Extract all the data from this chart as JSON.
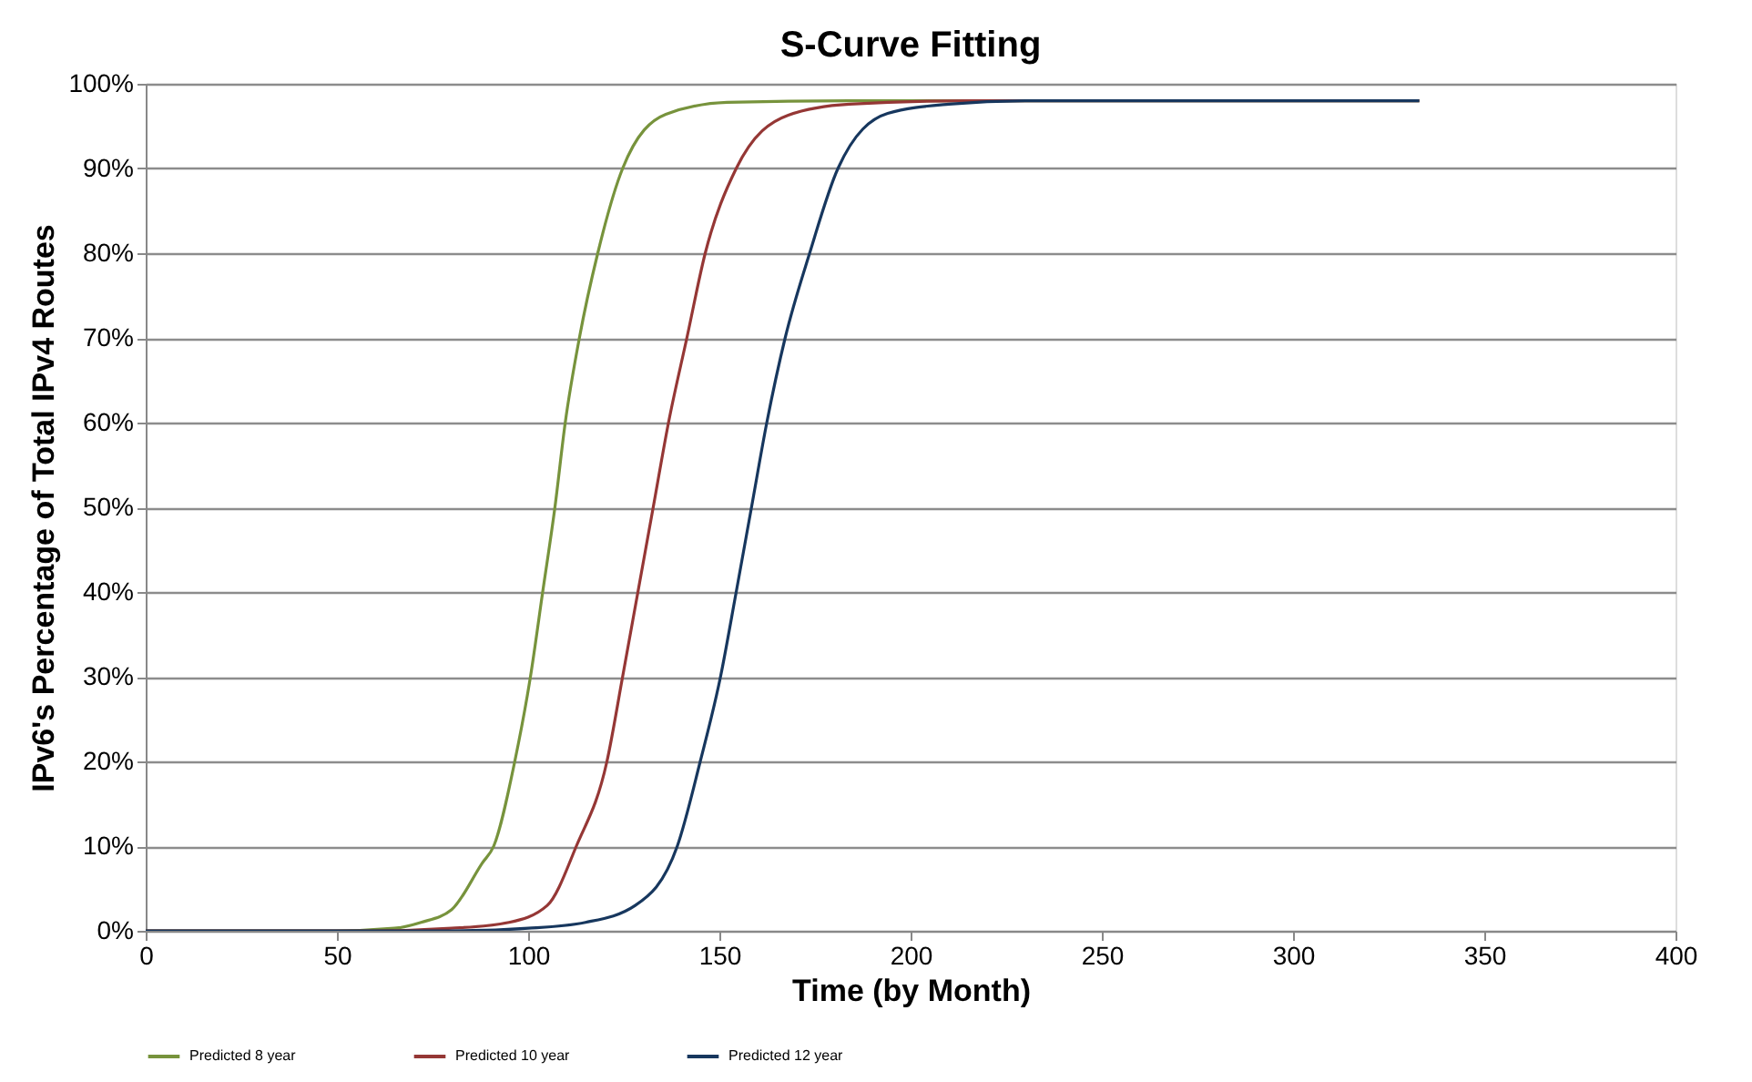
{
  "chart_data": {
    "type": "line",
    "title": "S-Curve Fitting",
    "xlabel": "Time (by Month)",
    "ylabel": "IPv6's Percentage of Total IPv4 Routes",
    "xlim": [
      0,
      400
    ],
    "xticks": [
      0,
      50,
      100,
      150,
      200,
      250,
      300,
      350,
      400
    ],
    "ylim": [
      0,
      100
    ],
    "yticks": [
      {
        "value": 0,
        "label": "0%"
      },
      {
        "value": 10,
        "label": "10%"
      },
      {
        "value": 20,
        "label": "20%"
      },
      {
        "value": 30,
        "label": "30%"
      },
      {
        "value": 40,
        "label": "40%"
      },
      {
        "value": 50,
        "label": "50%"
      },
      {
        "value": 60,
        "label": "60%"
      },
      {
        "value": 70,
        "label": "70%"
      },
      {
        "value": 80,
        "label": "80%"
      },
      {
        "value": 90,
        "label": "90%"
      },
      {
        "value": 100,
        "label": "100%"
      }
    ],
    "grid": "y",
    "legend": "bottom",
    "marker": "none",
    "line_style": "solid",
    "series": [
      {
        "name": "Predicted 8 year",
        "color": "#77933c",
        "x": [
          0,
          50,
          65,
          72,
          80,
          88,
          91,
          96.5,
          100.6,
          103.8,
          107,
          109.7,
          113.4,
          118.2,
          124.7,
          136,
          152,
          184,
          333
        ],
        "values": [
          0,
          0,
          0.3,
          1,
          2.5,
          8,
          10,
          20,
          30,
          40,
          50,
          60,
          70,
          80,
          90,
          96.4,
          97.8,
          98,
          98
        ]
      },
      {
        "name": "Predicted 10 year",
        "color": "#953735",
        "x": [
          0,
          60,
          80,
          95,
          105,
          112.6,
          120.6,
          124.7,
          128.7,
          132.7,
          136.7,
          141.5,
          146.3,
          154.4,
          168,
          184,
          215,
          333
        ],
        "values": [
          0,
          0,
          0.3,
          1,
          3,
          10,
          20,
          30,
          40,
          50,
          60,
          70,
          80,
          90,
          96.3,
          97.6,
          98,
          98
        ]
      },
      {
        "name": "Predicted 12 year",
        "color": "#17375e",
        "x": [
          0,
          80,
          100,
          115,
          128,
          139,
          145,
          150.3,
          154.4,
          158.4,
          162.4,
          167.2,
          173.6,
          181,
          194,
          210,
          230,
          333
        ],
        "values": [
          0,
          0,
          0.3,
          1,
          3,
          10,
          20,
          30,
          40,
          50,
          60,
          70,
          80,
          90,
          96.5,
          97.6,
          98,
          98
        ]
      }
    ]
  }
}
